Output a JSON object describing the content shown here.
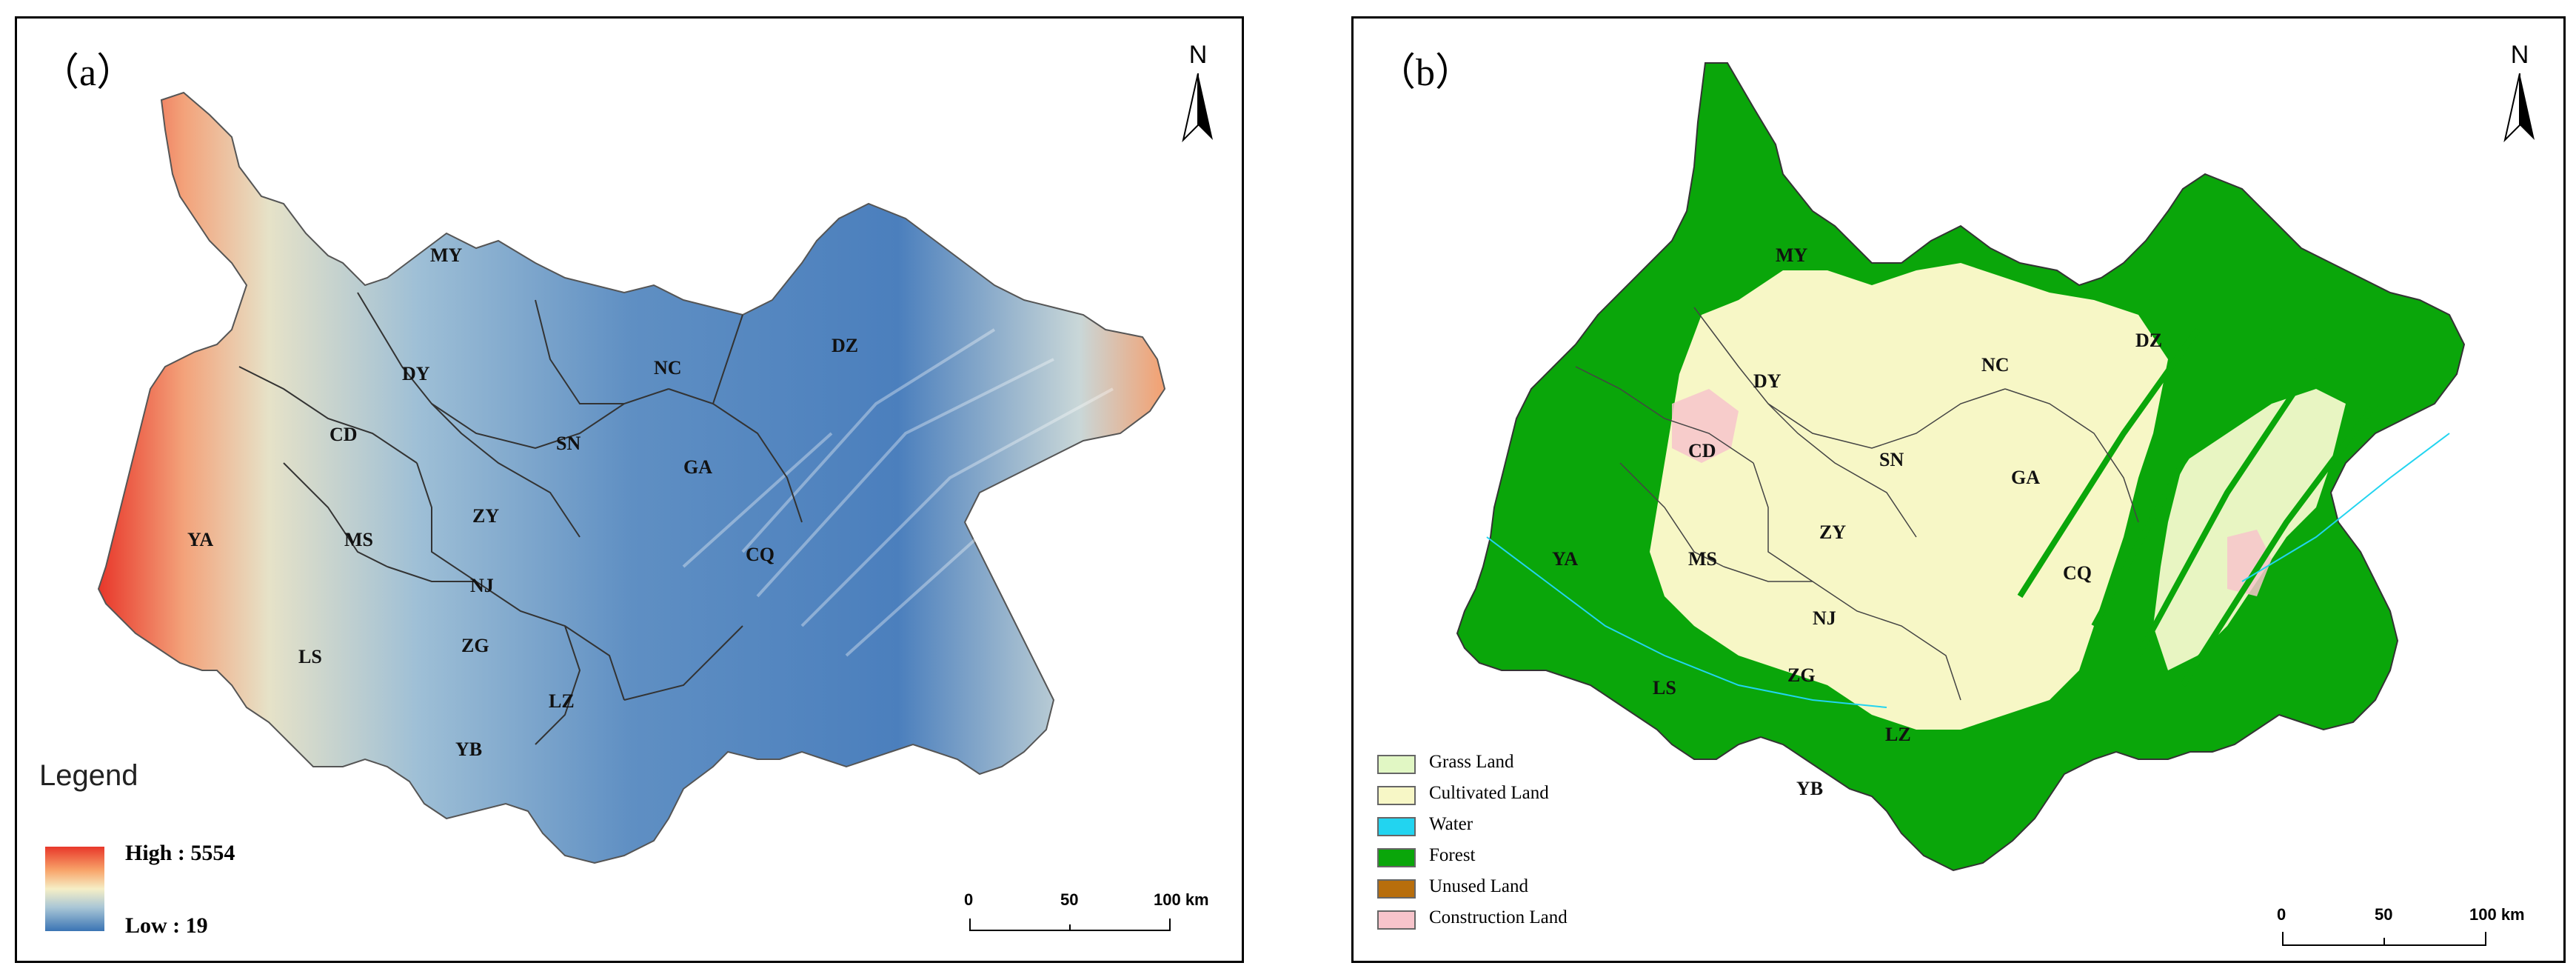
{
  "panel_a": {
    "label": "（a）",
    "north": "N",
    "legend_title": "Legend",
    "ramp_high": "High : 5554",
    "ramp_low": "Low : 19",
    "scale": {
      "t0": "0",
      "t1": "50",
      "t2": "100 km"
    }
  },
  "panel_b": {
    "label": "（b）",
    "north": "N",
    "legend": [
      {
        "label": "Grass Land",
        "color": "#e1f7c4"
      },
      {
        "label": "Cultivated Land",
        "color": "#f7f7c6"
      },
      {
        "label": "Water",
        "color": "#22d4f0"
      },
      {
        "label": "Forest",
        "color": "#0aa60a"
      },
      {
        "label": "Unused Land",
        "color": "#b86e0c"
      },
      {
        "label": "Construction Land",
        "color": "#f7c4cb"
      }
    ],
    "scale": {
      "t0": "0",
      "t1": "50",
      "t2": "100 km"
    }
  },
  "cities": [
    {
      "name": "MY"
    },
    {
      "name": "DY"
    },
    {
      "name": "CD"
    },
    {
      "name": "YA"
    },
    {
      "name": "MS"
    },
    {
      "name": "LS"
    },
    {
      "name": "ZY"
    },
    {
      "name": "NJ"
    },
    {
      "name": "ZG"
    },
    {
      "name": "YB"
    },
    {
      "name": "LZ"
    },
    {
      "name": "SN"
    },
    {
      "name": "NC"
    },
    {
      "name": "GA"
    },
    {
      "name": "DZ"
    },
    {
      "name": "CQ"
    }
  ],
  "colors": {
    "elev_high": "#e8372a",
    "elev_mid": "#f6efc6",
    "elev_low": "#3a74b4",
    "cultivated": "#f7f7c6",
    "forest": "#0aa60a"
  }
}
